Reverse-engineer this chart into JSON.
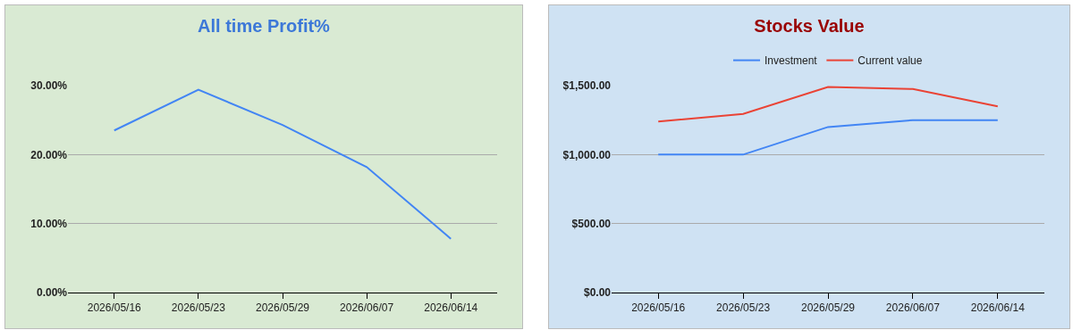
{
  "chart_data": [
    {
      "type": "line",
      "title": "All time Profit%",
      "categories": [
        "2026/05/16",
        "2026/05/23",
        "2026/05/29",
        "2026/06/07",
        "2026/06/14"
      ],
      "series": [
        {
          "color": "#4285f4",
          "values": [
            23.5,
            29.4,
            24.3,
            18.2,
            7.8
          ]
        }
      ],
      "ylim": [
        0,
        30
      ],
      "yticks": [
        {
          "value": 0,
          "label": "0.00%"
        },
        {
          "value": 10,
          "label": "10.00%"
        },
        {
          "value": 20,
          "label": "20.00%"
        },
        {
          "value": 30,
          "label": "30.00%"
        }
      ],
      "grid": "y",
      "legend": false
    },
    {
      "type": "line",
      "title": "Stocks Value",
      "categories": [
        "2026/05/16",
        "2026/05/23",
        "2026/05/29",
        "2026/06/07",
        "2026/06/14"
      ],
      "series": [
        {
          "name": "Investment",
          "color": "#4285f4",
          "values": [
            1000,
            1000,
            1200,
            1250,
            1250
          ]
        },
        {
          "name": "Current value",
          "color": "#ea4335",
          "values": [
            1240,
            1295,
            1490,
            1475,
            1350
          ]
        }
      ],
      "ylim": [
        0,
        1500
      ],
      "yticks": [
        {
          "value": 0,
          "label": "$0.00"
        },
        {
          "value": 500,
          "label": "$500.00"
        },
        {
          "value": 1000,
          "label": "$1,000.00"
        },
        {
          "value": 1500,
          "label": "$1,500.00"
        }
      ],
      "grid": "y",
      "legend": "top"
    }
  ]
}
